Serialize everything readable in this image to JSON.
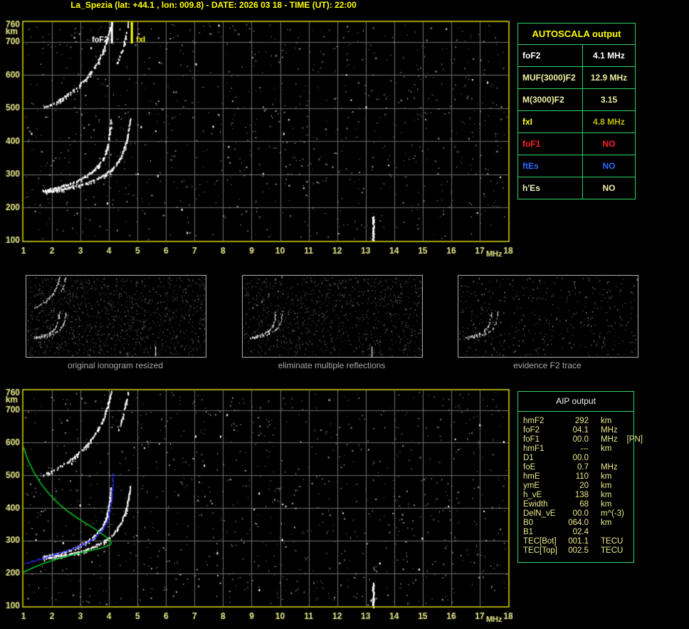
{
  "title": "La_Spezia (lat: +44.1 , lon: 009.8) - DATE: 2026 03 18 - TIME (UT): 22:00",
  "colors": {
    "title_yellow": "#ffff00",
    "plot_border": "#d9d900",
    "tick_label": "#e9e98a",
    "grid": "#6f6f6f",
    "table_border": "#2fd465",
    "pale_yellow": "#ededa2",
    "white": "#ffffff",
    "red": "#ff2020",
    "blue": "#2a6aff",
    "olive_value": "#b9b900",
    "profile_green": "#00c020",
    "profile_blue": "#2828e8",
    "caption_gray": "#a8a8a8"
  },
  "autoscala": {
    "header": "AUTOSCALA output",
    "rows": [
      {
        "label": "foF2",
        "value": "4.1 MHz",
        "label_color": "#ffffff",
        "value_color": "#ffffff"
      },
      {
        "label": "MUF(3000)F2",
        "value": "12.9 MHz",
        "label_color": "#ededa2",
        "value_color": "#ededa2"
      },
      {
        "label": "M(3000)F2",
        "value": "3.15",
        "label_color": "#ededa2",
        "value_color": "#ededa2"
      },
      {
        "label": "fxI",
        "value": "4.8 MHz",
        "label_color": "#ffff2a",
        "value_color": "#b9b900"
      },
      {
        "label": "foF1",
        "value": "NO",
        "label_color": "#ff2020",
        "value_color": "#ff2020"
      },
      {
        "label": "ftEs",
        "value": "NO",
        "label_color": "#2a6aff",
        "value_color": "#2a6aff"
      },
      {
        "label": "h'Es",
        "value": "NO",
        "label_color": "#efefc0",
        "value_color": "#ededa2"
      }
    ]
  },
  "aip": {
    "header": "AIP output",
    "rows": [
      {
        "name": "hmF2",
        "value": "292",
        "unit": "km",
        "extra": ""
      },
      {
        "name": "foF2",
        "value": "04.1",
        "unit": "MHz",
        "extra": ""
      },
      {
        "name": "foF1",
        "value": "00.0",
        "unit": "MHz",
        "extra": "[PN]"
      },
      {
        "name": "hmF1",
        "value": "---",
        "unit": "km",
        "extra": ""
      },
      {
        "name": "D1",
        "value": "00.0",
        "unit": "",
        "extra": ""
      },
      {
        "name": "foE",
        "value": "0.7",
        "unit": "MHz",
        "extra": ""
      },
      {
        "name": "hmE",
        "value": "110",
        "unit": "km",
        "extra": ""
      },
      {
        "name": "ymE",
        "value": "20",
        "unit": "km",
        "extra": ""
      },
      {
        "name": "h_vE",
        "value": "138",
        "unit": "km",
        "extra": ""
      },
      {
        "name": "Ewidth",
        "value": "68",
        "unit": "km",
        "extra": ""
      },
      {
        "name": "DelN_vE",
        "value": "00.0",
        "unit": "m^(-3)",
        "extra": ""
      },
      {
        "name": "B0",
        "value": "064.0",
        "unit": "km",
        "extra": ""
      },
      {
        "name": "B1",
        "value": "02.4",
        "unit": "",
        "extra": ""
      },
      {
        "name": "TEC[Bot]",
        "value": "001.1",
        "unit": "TECU",
        "extra": ""
      },
      {
        "name": "TEC[Top]",
        "value": "002.5",
        "unit": "TECU",
        "extra": ""
      }
    ]
  },
  "thumbnails": {
    "items": [
      {
        "caption": "original ionogram resized",
        "series": [
          0,
          1,
          2,
          3
        ],
        "skips": [
          0.15,
          0.15,
          0.18,
          0.35
        ],
        "noise": {
          "seed": 31,
          "dots": 1400,
          "lo": 45,
          "hi": 145
        },
        "streak": true
      },
      {
        "caption": "eliminate multiple reflections",
        "series": [
          0,
          1,
          2,
          3
        ],
        "skips": [
          0.2,
          0.2,
          0.82,
          0.86
        ],
        "noise": {
          "seed": 32,
          "dots": 1150,
          "lo": 45,
          "hi": 145
        },
        "streak": true
      },
      {
        "caption": "evidence F2 trace",
        "series": [
          0,
          1
        ],
        "skips": [
          0.25,
          0.3
        ],
        "noise": {
          "seed": 33,
          "dots": 430,
          "lo": 80,
          "hi": 200
        },
        "streak": false
      }
    ]
  },
  "chart_data": [
    {
      "id": "top_ionogram",
      "type": "scatter",
      "xlabel": "MHz",
      "ylabel": "km",
      "xlim": [
        1,
        18
      ],
      "ylim": [
        100,
        760
      ],
      "x_ticks": [
        1,
        2,
        3,
        4,
        5,
        6,
        7,
        8,
        9,
        10,
        11,
        12,
        13,
        14,
        15,
        16,
        17,
        18
      ],
      "y_ticks": [
        100,
        200,
        300,
        400,
        500,
        600,
        700,
        760
      ],
      "grid": true,
      "noise": {
        "seed": 7,
        "dots": 1000,
        "lo": 95,
        "hi": 190,
        "bright": 30,
        "streak": {
          "f": 13.25,
          "h0": 100,
          "h1": 175
        }
      },
      "markers": [
        {
          "label": "foF2",
          "f": 4.1,
          "color": "#ffffff",
          "side": "left"
        },
        {
          "label": "fxI",
          "f": 4.8,
          "color": "#ffff00",
          "side": "right"
        }
      ],
      "series": [
        {
          "name": "F2 trace 1st hop O-mode",
          "style": "echo",
          "color": "#ffffff",
          "skip": 0.12,
          "points": [
            [
              1.65,
              250
            ],
            [
              1.9,
              254
            ],
            [
              2.15,
              259
            ],
            [
              2.4,
              265
            ],
            [
              2.65,
              272
            ],
            [
              2.9,
              281
            ],
            [
              3.15,
              293
            ],
            [
              3.4,
              308
            ],
            [
              3.6,
              325
            ],
            [
              3.78,
              347
            ],
            [
              3.9,
              373
            ],
            [
              3.98,
              405
            ],
            [
              4.03,
              438
            ],
            [
              4.06,
              462
            ]
          ]
        },
        {
          "name": "F2 trace 1st hop X-mode",
          "style": "echo",
          "color": "#ffffff",
          "skip": 0.12,
          "points": [
            [
              1.7,
              245
            ],
            [
              2.0,
              249
            ],
            [
              2.3,
              254
            ],
            [
              2.6,
              259
            ],
            [
              2.9,
              265
            ],
            [
              3.2,
              273
            ],
            [
              3.5,
              283
            ],
            [
              3.8,
              296
            ],
            [
              4.05,
              312
            ],
            [
              4.25,
              331
            ],
            [
              4.42,
              355
            ],
            [
              4.55,
              384
            ],
            [
              4.64,
              415
            ],
            [
              4.7,
              445
            ],
            [
              4.73,
              466
            ]
          ]
        },
        {
          "name": "F2 trace 2nd hop O-mode",
          "style": "echo",
          "color": "#ffffff",
          "skip": 0.18,
          "points": [
            [
              1.68,
              500
            ],
            [
              1.95,
              510
            ],
            [
              2.25,
              524
            ],
            [
              2.55,
              541
            ],
            [
              2.85,
              561
            ],
            [
              3.1,
              582
            ],
            [
              3.35,
              607
            ],
            [
              3.58,
              636
            ],
            [
              3.78,
              670
            ],
            [
              3.92,
              706
            ],
            [
              4.02,
              738
            ],
            [
              4.08,
              758
            ]
          ]
        },
        {
          "name": "F2 trace 2nd hop X-mode",
          "style": "echo",
          "color": "#ffffff",
          "skip": 0.4,
          "points": [
            [
              4.28,
              635
            ],
            [
              4.4,
              662
            ],
            [
              4.5,
              692
            ],
            [
              4.58,
              722
            ],
            [
              4.64,
              748
            ],
            [
              4.67,
              760
            ]
          ]
        }
      ]
    },
    {
      "id": "bottom_ionogram",
      "type": "scatter",
      "xlabel": "MHz",
      "ylabel": "km",
      "xlim": [
        1,
        18
      ],
      "ylim": [
        100,
        760
      ],
      "x_ticks": [
        1,
        2,
        3,
        4,
        5,
        6,
        7,
        8,
        9,
        10,
        11,
        12,
        13,
        14,
        15,
        16,
        17,
        18
      ],
      "y_ticks": [
        100,
        200,
        300,
        400,
        500,
        600,
        700,
        760
      ],
      "grid": true,
      "noise": {
        "seed": 13,
        "dots": 1000,
        "lo": 95,
        "hi": 190,
        "bright": 30,
        "streak": {
          "f": 13.25,
          "h0": 100,
          "h1": 172
        }
      },
      "markers": [],
      "series": [
        {
          "ref": 0
        },
        {
          "ref": 1
        },
        {
          "ref": 2
        },
        {
          "ref": 3
        },
        {
          "name": "AIP electron density profile",
          "style": "line",
          "color": "#00c020",
          "points": [
            [
              1.0,
              586
            ],
            [
              1.15,
              548
            ],
            [
              1.35,
              512
            ],
            [
              1.6,
              476
            ],
            [
              1.9,
              443
            ],
            [
              2.2,
              416
            ],
            [
              2.5,
              394
            ],
            [
              2.8,
              375
            ],
            [
              3.1,
              358
            ],
            [
              3.4,
              342
            ],
            [
              3.65,
              328
            ],
            [
              3.85,
              315
            ],
            [
              3.98,
              306
            ],
            [
              4.06,
              299
            ],
            [
              4.08,
              294
            ],
            [
              4.04,
              288
            ],
            [
              3.9,
              283
            ],
            [
              3.7,
              277
            ],
            [
              3.45,
              272
            ],
            [
              3.15,
              266
            ],
            [
              2.85,
              260
            ],
            [
              2.55,
              253
            ],
            [
              2.25,
              246
            ],
            [
              1.95,
              238
            ],
            [
              1.65,
              229
            ],
            [
              1.35,
              218
            ],
            [
              1.12,
              209
            ],
            [
              1.0,
              204
            ]
          ]
        },
        {
          "name": "fitted O-mode trace",
          "style": "dots",
          "color": "#2828e8",
          "points": [
            [
              1.05,
              231
            ],
            [
              1.3,
              237
            ],
            [
              1.55,
              243
            ],
            [
              1.8,
              249
            ],
            [
              2.05,
              256
            ],
            [
              2.3,
              263
            ],
            [
              2.55,
              270
            ],
            [
              2.8,
              278
            ],
            [
              3.05,
              288
            ],
            [
              3.3,
              299
            ],
            [
              3.55,
              314
            ],
            [
              3.75,
              332
            ],
            [
              3.9,
              355
            ],
            [
              4.0,
              385
            ],
            [
              4.06,
              420
            ],
            [
              4.1,
              455
            ],
            [
              4.11,
              490
            ],
            [
              4.12,
              505
            ]
          ]
        }
      ]
    }
  ]
}
